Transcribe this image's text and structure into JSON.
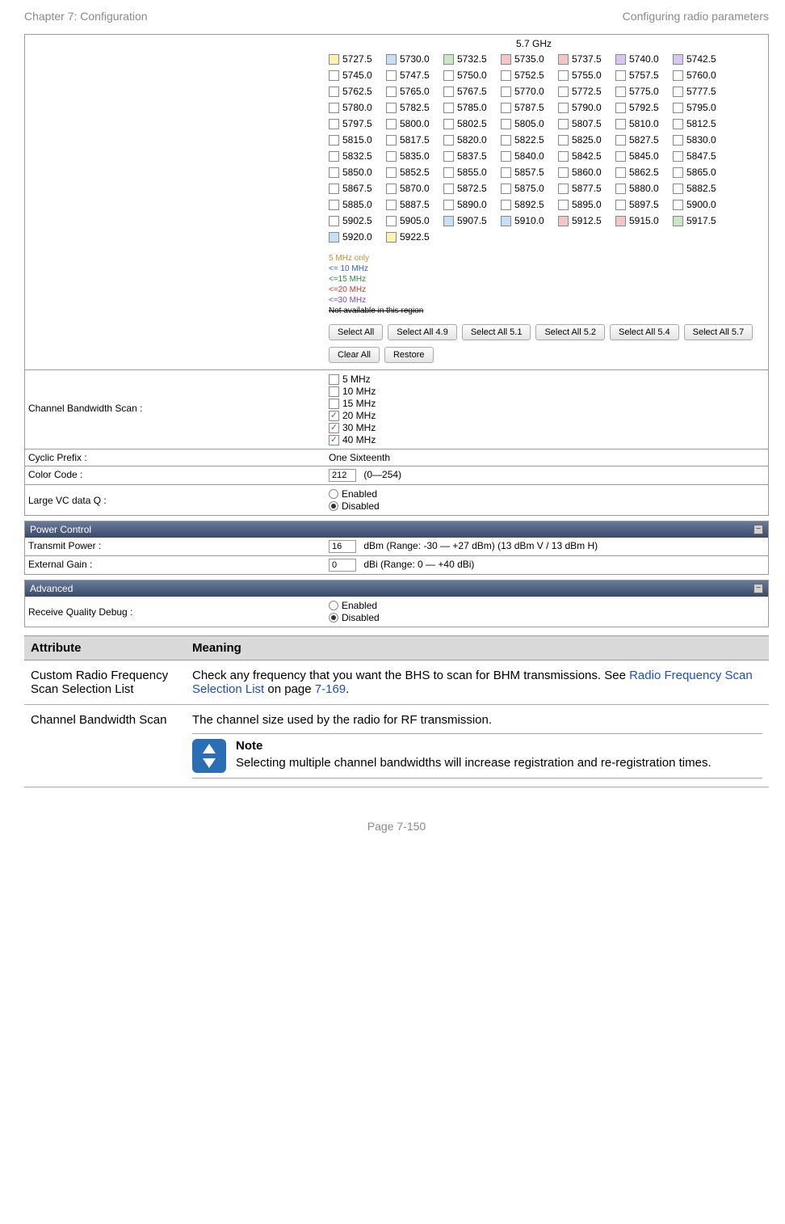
{
  "header": {
    "left": "Chapter 7:  Configuration",
    "right": "Configuring radio parameters"
  },
  "freq_section": {
    "title": "5.7 GHz",
    "colors": {
      "c5": "#fef2b0",
      "c10": "#c6dff5",
      "c15": "#c8e8c4",
      "c20": "#f5c6c6",
      "c30": "#d8c6f0",
      "cna": "#ffffff",
      "border": "#888888"
    },
    "rows": [
      [
        {
          "v": "5727.5",
          "c": "c5"
        },
        {
          "v": "5730.0",
          "c": "c10"
        },
        {
          "v": "5732.5",
          "c": "c15"
        },
        {
          "v": "5735.0",
          "c": "c20"
        },
        {
          "v": "5737.5",
          "c": "c20"
        },
        {
          "v": "5740.0",
          "c": "c30"
        },
        {
          "v": "5742.5",
          "c": "c30"
        }
      ],
      [
        {
          "v": "5745.0"
        },
        {
          "v": "5747.5"
        },
        {
          "v": "5750.0"
        },
        {
          "v": "5752.5"
        },
        {
          "v": "5755.0"
        },
        {
          "v": "5757.5"
        },
        {
          "v": "5760.0"
        }
      ],
      [
        {
          "v": "5762.5"
        },
        {
          "v": "5765.0"
        },
        {
          "v": "5767.5"
        },
        {
          "v": "5770.0"
        },
        {
          "v": "5772.5"
        },
        {
          "v": "5775.0"
        },
        {
          "v": "5777.5"
        }
      ],
      [
        {
          "v": "5780.0"
        },
        {
          "v": "5782.5"
        },
        {
          "v": "5785.0"
        },
        {
          "v": "5787.5"
        },
        {
          "v": "5790.0"
        },
        {
          "v": "5792.5"
        },
        {
          "v": "5795.0"
        }
      ],
      [
        {
          "v": "5797.5"
        },
        {
          "v": "5800.0"
        },
        {
          "v": "5802.5"
        },
        {
          "v": "5805.0"
        },
        {
          "v": "5807.5"
        },
        {
          "v": "5810.0"
        },
        {
          "v": "5812.5"
        }
      ],
      [
        {
          "v": "5815.0"
        },
        {
          "v": "5817.5"
        },
        {
          "v": "5820.0"
        },
        {
          "v": "5822.5"
        },
        {
          "v": "5825.0"
        },
        {
          "v": "5827.5"
        },
        {
          "v": "5830.0"
        }
      ],
      [
        {
          "v": "5832.5"
        },
        {
          "v": "5835.0"
        },
        {
          "v": "5837.5"
        },
        {
          "v": "5840.0"
        },
        {
          "v": "5842.5"
        },
        {
          "v": "5845.0"
        },
        {
          "v": "5847.5"
        }
      ],
      [
        {
          "v": "5850.0"
        },
        {
          "v": "5852.5"
        },
        {
          "v": "5855.0"
        },
        {
          "v": "5857.5"
        },
        {
          "v": "5860.0"
        },
        {
          "v": "5862.5"
        },
        {
          "v": "5865.0"
        }
      ],
      [
        {
          "v": "5867.5"
        },
        {
          "v": "5870.0"
        },
        {
          "v": "5872.5"
        },
        {
          "v": "5875.0"
        },
        {
          "v": "5877.5"
        },
        {
          "v": "5880.0"
        },
        {
          "v": "5882.5"
        }
      ],
      [
        {
          "v": "5885.0"
        },
        {
          "v": "5887.5"
        },
        {
          "v": "5890.0"
        },
        {
          "v": "5892.5"
        },
        {
          "v": "5895.0"
        },
        {
          "v": "5897.5"
        },
        {
          "v": "5900.0"
        }
      ],
      [
        {
          "v": "5902.5"
        },
        {
          "v": "5905.0"
        },
        {
          "v": "5907.5",
          "c": "c10"
        },
        {
          "v": "5910.0",
          "c": "c10"
        },
        {
          "v": "5912.5",
          "c": "c20"
        },
        {
          "v": "5915.0",
          "c": "c20"
        },
        {
          "v": "5917.5",
          "c": "c15"
        }
      ],
      [
        {
          "v": "5920.0",
          "c": "c10"
        },
        {
          "v": "5922.5",
          "c": "c5"
        }
      ]
    ],
    "legend": [
      {
        "label": "5 MHz only",
        "color": "#c09030"
      },
      {
        "label": "<= 10 MHz",
        "color": "#2a5fc4"
      },
      {
        "label": "<=15 MHz",
        "color": "#2a8a3a"
      },
      {
        "label": "<=20 MHz",
        "color": "#c43a3a"
      },
      {
        "label": "<=30 MHz",
        "color": "#7a4ac0"
      },
      {
        "label": "Not available in this region",
        "color": "#000000",
        "strike": true
      }
    ],
    "buttons1": [
      "Select All",
      "Select All 4.9",
      "Select All 5.1",
      "Select All 5.2",
      "Select All 5.4",
      "Select All 5.7"
    ],
    "buttons2": [
      "Clear All",
      "Restore"
    ]
  },
  "params": {
    "bandwidth": {
      "label": "Channel Bandwidth Scan :",
      "items": [
        {
          "label": "5 MHz",
          "checked": false
        },
        {
          "label": "10 MHz",
          "checked": false
        },
        {
          "label": "15 MHz",
          "checked": false
        },
        {
          "label": "20 MHz",
          "checked": true
        },
        {
          "label": "30 MHz",
          "checked": true
        },
        {
          "label": "40 MHz",
          "checked": true
        }
      ]
    },
    "cyclic": {
      "label": "Cyclic Prefix :",
      "value": "One Sixteenth"
    },
    "color_code": {
      "label": "Color Code :",
      "value": "212",
      "range": "(0—254)"
    },
    "large_vc": {
      "label": "Large VC data Q :",
      "enabled_label": "Enabled",
      "disabled_label": "Disabled",
      "selected": "disabled"
    }
  },
  "power": {
    "header": "Power Control",
    "transmit": {
      "label": "Transmit Power :",
      "value": "16",
      "unit": "dBm (Range: -30 — +27 dBm) (13 dBm V / 13 dBm H)"
    },
    "gain": {
      "label": "External Gain :",
      "value": "0",
      "unit": "dBi (Range: 0 — +40 dBi)"
    }
  },
  "advanced": {
    "header": "Advanced",
    "debug": {
      "label": "Receive Quality Debug :",
      "enabled_label": "Enabled",
      "disabled_label": "Disabled",
      "selected": "disabled"
    }
  },
  "table": {
    "head": {
      "attr": "Attribute",
      "mean": "Meaning"
    },
    "rows": [
      {
        "attr": "Custom Radio Frequency Scan Selection List",
        "text1": "Check any frequency that you want the BHS to scan for BHM transmissions. See ",
        "link": "Radio Frequency Scan Selection List",
        "text2": " on page ",
        "pageref": "7-169",
        "text3": "."
      },
      {
        "attr": "Channel Bandwidth Scan",
        "lead": "The channel size used by the radio for RF transmission.",
        "note_title": "Note",
        "note_body": "Selecting multiple channel bandwidths will increase registration and re-registration times."
      }
    ]
  },
  "footer": "Page 7-150"
}
